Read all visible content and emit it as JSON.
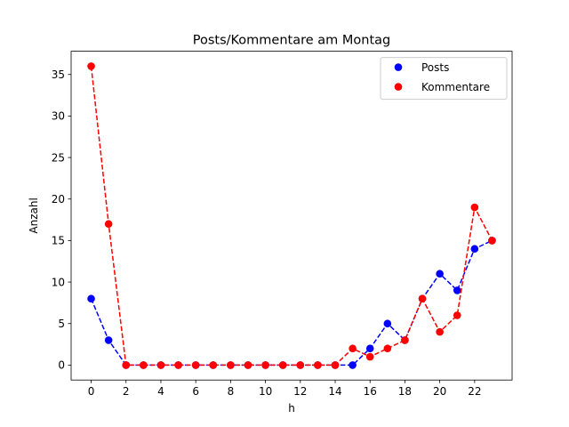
{
  "chart_data": {
    "type": "line",
    "title": "Posts/Kommentare am Montag",
    "xlabel": "h",
    "ylabel": "Anzahl",
    "x": [
      0,
      1,
      2,
      3,
      4,
      5,
      6,
      7,
      8,
      9,
      10,
      11,
      12,
      13,
      14,
      15,
      16,
      17,
      18,
      19,
      20,
      21,
      22,
      23
    ],
    "xlim": [
      -1.15,
      24.15
    ],
    "ylim": [
      -1.8,
      37.8
    ],
    "xticks": [
      0,
      2,
      4,
      6,
      8,
      10,
      12,
      14,
      16,
      18,
      20,
      22
    ],
    "yticks": [
      0,
      5,
      10,
      15,
      20,
      25,
      30,
      35
    ],
    "grid": false,
    "legend_position": "top-right",
    "series": [
      {
        "name": "Posts",
        "color": "#0000ff",
        "line_style": "dashed",
        "marker": "circle",
        "values": [
          8,
          3,
          0,
          0,
          0,
          0,
          0,
          0,
          0,
          0,
          0,
          0,
          0,
          0,
          0,
          0,
          2,
          5,
          3,
          8,
          11,
          9,
          14,
          15
        ]
      },
      {
        "name": "Kommentare",
        "color": "#ff0000",
        "line_style": "dashed",
        "marker": "circle",
        "values": [
          36,
          17,
          0,
          0,
          0,
          0,
          0,
          0,
          0,
          0,
          0,
          0,
          0,
          0,
          0,
          2,
          1,
          2,
          3,
          8,
          4,
          6,
          19,
          15
        ]
      }
    ]
  }
}
